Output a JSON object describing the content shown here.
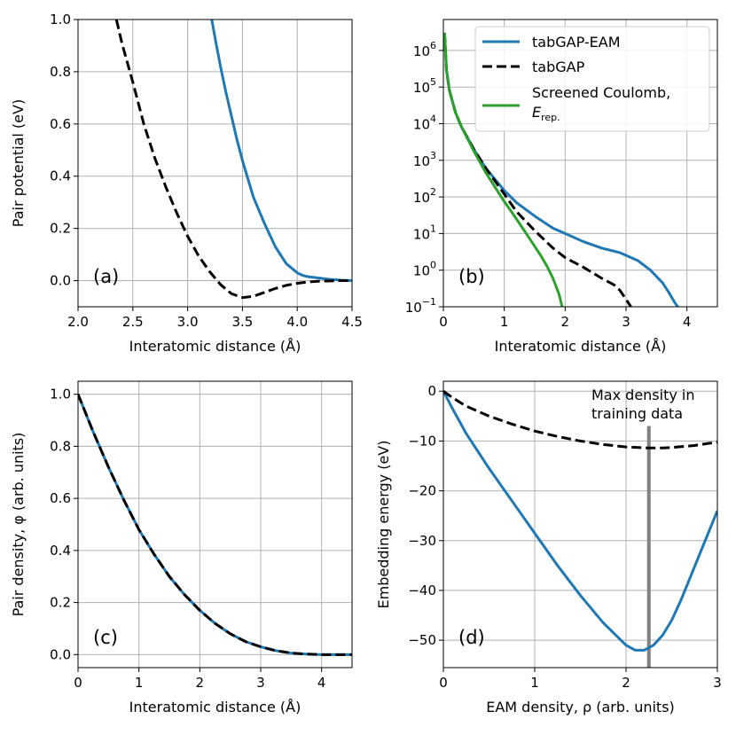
{
  "chart_data": [
    {
      "id": "a",
      "type": "line",
      "panel_label": "(a)",
      "xlabel": "Interatomic distance (Å)",
      "ylabel": "Pair potential (eV)",
      "xlim": [
        2.0,
        4.5
      ],
      "ylim": [
        -0.1,
        1.0
      ],
      "xticks": [
        2.0,
        2.5,
        3.0,
        3.5,
        4.0,
        4.5
      ],
      "xticklabels": [
        "2.0",
        "2.5",
        "3.0",
        "3.5",
        "4.0",
        "4.5"
      ],
      "yticks": [
        0.0,
        0.2,
        0.4,
        0.6,
        0.8,
        1.0
      ],
      "yticklabels": [
        "0.0",
        "0.2",
        "0.4",
        "0.6",
        "0.8",
        "1.0"
      ],
      "grid": true,
      "series": [
        {
          "name": "tabGAP-EAM",
          "color": "#1f77b4",
          "dash": false,
          "x": [
            3.22,
            3.25,
            3.3,
            3.35,
            3.4,
            3.45,
            3.5,
            3.55,
            3.6,
            3.7,
            3.8,
            3.9,
            4.0,
            4.05,
            4.1,
            4.2,
            4.3,
            4.4,
            4.5
          ],
          "y": [
            1.0,
            0.93,
            0.82,
            0.72,
            0.63,
            0.54,
            0.46,
            0.39,
            0.32,
            0.22,
            0.13,
            0.065,
            0.03,
            0.02,
            0.015,
            0.01,
            0.005,
            0.002,
            0.0
          ]
        },
        {
          "name": "tabGAP",
          "color": "#000000",
          "dash": true,
          "x": [
            2.35,
            2.4,
            2.5,
            2.6,
            2.7,
            2.8,
            2.9,
            3.0,
            3.1,
            3.2,
            3.3,
            3.4,
            3.5,
            3.6,
            3.7,
            3.8,
            3.9,
            4.0,
            4.1,
            4.2,
            4.3,
            4.4,
            4.5
          ],
          "y": [
            1.0,
            0.91,
            0.76,
            0.6,
            0.47,
            0.36,
            0.26,
            0.17,
            0.095,
            0.035,
            -0.015,
            -0.05,
            -0.065,
            -0.06,
            -0.045,
            -0.03,
            -0.018,
            -0.01,
            -0.005,
            -0.002,
            -0.001,
            0.0,
            0.0
          ]
        }
      ]
    },
    {
      "id": "b",
      "type": "line",
      "yscale": "log",
      "panel_label": "(b)",
      "xlabel": "Interatomic distance (Å)",
      "ylabel": "",
      "xlim": [
        0,
        4.5
      ],
      "ylim": [
        0.1,
        7000000
      ],
      "xticks": [
        0,
        1,
        2,
        3,
        4
      ],
      "xticklabels": [
        "0",
        "1",
        "2",
        "3",
        "4"
      ],
      "ytick_exponents": [
        -1,
        0,
        1,
        2,
        3,
        4,
        5,
        6
      ],
      "ytick_base": "10",
      "grid": true,
      "legend": {
        "position": "top-right",
        "entries": [
          {
            "label": "tabGAP-EAM",
            "color": "#1f77b4",
            "dash": false
          },
          {
            "label": "tabGAP",
            "color": "#000000",
            "dash": true
          },
          {
            "label": "Screened Coulomb,",
            "label2": "E",
            "label2_sub": "rep.",
            "color": "#2ca02c",
            "dash": false
          }
        ]
      },
      "series": [
        {
          "name": "tabGAP-EAM",
          "color": "#1f77b4",
          "dash": false,
          "x": [
            0.02,
            0.05,
            0.1,
            0.2,
            0.3,
            0.5,
            0.7,
            1.0,
            1.2,
            1.5,
            1.8,
            2.0,
            2.3,
            2.6,
            2.9,
            3.2,
            3.4,
            3.6,
            3.7,
            3.8,
            3.85
          ],
          "y": [
            3000000,
            300000,
            80000,
            20000,
            8000,
            2000,
            600,
            150,
            70,
            30,
            14,
            10,
            6,
            4,
            3,
            1.8,
            1.0,
            0.45,
            0.25,
            0.13,
            0.1
          ]
        },
        {
          "name": "tabGAP",
          "color": "#000000",
          "dash": true,
          "x": [
            0.02,
            0.05,
            0.1,
            0.2,
            0.3,
            0.5,
            0.7,
            1.0,
            1.2,
            1.5,
            1.8,
            2.0,
            2.3,
            2.6,
            2.8,
            2.9,
            3.0,
            3.08
          ],
          "y": [
            3000000,
            300000,
            80000,
            20000,
            8000,
            2000,
            600,
            120,
            40,
            12,
            4,
            2.2,
            1.2,
            0.6,
            0.4,
            0.28,
            0.16,
            0.1
          ]
        },
        {
          "name": "Screened Coulomb, E_rep.",
          "color": "#2ca02c",
          "dash": false,
          "x": [
            0.02,
            0.05,
            0.1,
            0.2,
            0.3,
            0.5,
            0.7,
            1.0,
            1.2,
            1.4,
            1.6,
            1.7,
            1.8,
            1.9,
            1.95
          ],
          "y": [
            3000000,
            300000,
            80000,
            20000,
            8000,
            1800,
            450,
            75,
            25,
            8,
            2.5,
            1.3,
            0.6,
            0.22,
            0.1
          ]
        }
      ]
    },
    {
      "id": "c",
      "type": "line",
      "panel_label": "(c)",
      "xlabel": "Interatomic distance (Å)",
      "ylabel": "Pair density, φ (arb. units)",
      "xlim": [
        0,
        4.5
      ],
      "ylim": [
        -0.05,
        1.05
      ],
      "xticks": [
        0,
        1,
        2,
        3,
        4
      ],
      "xticklabels": [
        "0",
        "1",
        "2",
        "3",
        "4"
      ],
      "yticks": [
        0.0,
        0.2,
        0.4,
        0.6,
        0.8,
        1.0
      ],
      "yticklabels": [
        "0.0",
        "0.2",
        "0.4",
        "0.6",
        "0.8",
        "1.0"
      ],
      "grid": true,
      "series": [
        {
          "name": "tabGAP-EAM",
          "color": "#1f77b4",
          "dash": false,
          "x": [
            0,
            0.25,
            0.5,
            0.75,
            1.0,
            1.25,
            1.5,
            1.75,
            2.0,
            2.25,
            2.5,
            2.75,
            3.0,
            3.25,
            3.5,
            3.75,
            4.0,
            4.25,
            4.5
          ],
          "y": [
            1.0,
            0.855,
            0.72,
            0.595,
            0.48,
            0.385,
            0.3,
            0.23,
            0.17,
            0.12,
            0.08,
            0.05,
            0.03,
            0.015,
            0.006,
            0.002,
            0.0,
            0.0,
            0.0
          ]
        },
        {
          "name": "tabGAP",
          "color": "#000000",
          "dash": true,
          "x": [
            0,
            0.25,
            0.5,
            0.75,
            1.0,
            1.25,
            1.5,
            1.75,
            2.0,
            2.25,
            2.5,
            2.75,
            3.0,
            3.25,
            3.5,
            3.75,
            4.0,
            4.25,
            4.5
          ],
          "y": [
            1.0,
            0.855,
            0.72,
            0.595,
            0.48,
            0.385,
            0.3,
            0.23,
            0.17,
            0.12,
            0.08,
            0.05,
            0.03,
            0.015,
            0.006,
            0.002,
            0.0,
            0.0,
            0.0
          ]
        }
      ]
    },
    {
      "id": "d",
      "type": "line",
      "panel_label": "(d)",
      "xlabel": "EAM density, ρ (arb. units)",
      "ylabel": "Embedding energy (eV)",
      "xlim": [
        0,
        3
      ],
      "ylim": [
        -55.5,
        2
      ],
      "xticks": [
        0,
        1,
        2,
        3
      ],
      "xticklabels": [
        "0",
        "1",
        "2",
        "3"
      ],
      "yticks": [
        0,
        -10,
        -20,
        -30,
        -40,
        -50
      ],
      "yticklabels": [
        "0",
        "−10",
        "−20",
        "−30",
        "−40",
        "−50"
      ],
      "grid": true,
      "vline": {
        "x": 2.25,
        "color": "#808080"
      },
      "annotation": [
        "Max density in",
        "training data"
      ],
      "series": [
        {
          "name": "tabGAP-EAM",
          "color": "#1f77b4",
          "dash": false,
          "x": [
            0,
            0.1,
            0.25,
            0.5,
            0.75,
            1.0,
            1.25,
            1.5,
            1.75,
            2.0,
            2.1,
            2.2,
            2.3,
            2.4,
            2.5,
            2.6,
            2.7,
            2.8,
            2.9,
            3.0
          ],
          "y": [
            0,
            -3.5,
            -8.5,
            -15.5,
            -22,
            -28.5,
            -35,
            -41,
            -46.5,
            -51,
            -52,
            -52,
            -51,
            -49,
            -46,
            -42,
            -37.5,
            -33,
            -28.5,
            -24
          ]
        },
        {
          "name": "tabGAP",
          "color": "#000000",
          "dash": true,
          "x": [
            0,
            0.1,
            0.25,
            0.5,
            0.75,
            1.0,
            1.25,
            1.5,
            1.75,
            2.0,
            2.25,
            2.4,
            2.5,
            2.75,
            3.0
          ],
          "y": [
            0,
            -1.3,
            -3,
            -5,
            -6.6,
            -8,
            -9.1,
            -10,
            -10.7,
            -11.2,
            -11.4,
            -11.4,
            -11.3,
            -10.9,
            -10.2
          ]
        }
      ]
    }
  ]
}
